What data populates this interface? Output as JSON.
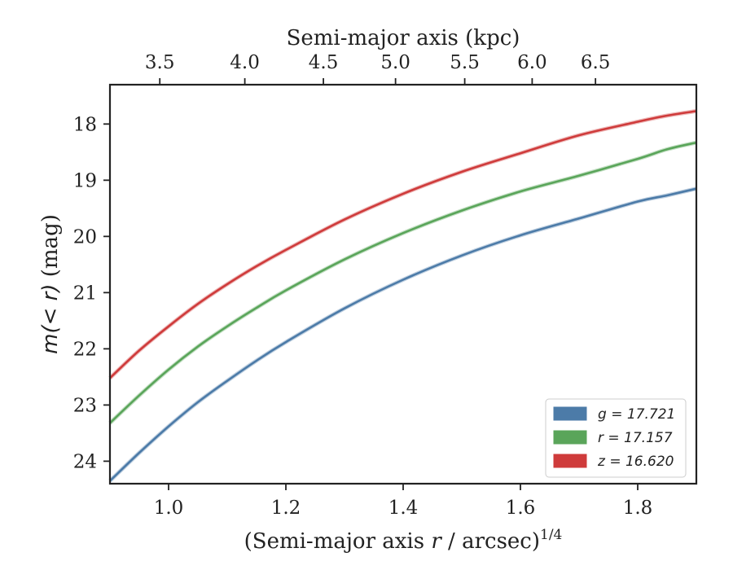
{
  "chart_data": {
    "type": "line",
    "xlabel_prefix": "(Semi-major axis ",
    "xlabel_var": "r",
    "xlabel_suffix": " / arcsec)",
    "xlabel_sup": "1/4",
    "ylabel_var": "m(< r)",
    "ylabel_suffix": " (mag)",
    "top_xlabel": "Semi-major axis (kpc)",
    "xlim": [
      0.9,
      1.9
    ],
    "ylim": [
      24.4,
      17.3
    ],
    "y_inverted": true,
    "x_ticks": [
      1.0,
      1.2,
      1.4,
      1.6,
      1.8
    ],
    "x_tick_labels": [
      "1.0",
      "1.2",
      "1.4",
      "1.6",
      "1.8"
    ],
    "y_ticks": [
      18,
      19,
      20,
      21,
      22,
      23,
      24
    ],
    "y_tick_labels": [
      "18",
      "19",
      "20",
      "21",
      "22",
      "23",
      "24"
    ],
    "top_ticks_x": [
      0.985,
      1.13,
      1.264,
      1.387,
      1.505,
      1.62,
      1.728
    ],
    "top_tick_labels": [
      "3.5",
      "4.0",
      "4.5",
      "5.0",
      "5.5",
      "6.0",
      "6.5"
    ],
    "legend_position": "lower-right",
    "grid": false,
    "series": [
      {
        "name": "g",
        "legend_label": "g = 17.721",
        "color": "#4c7ba8",
        "x": [
          0.9,
          0.95,
          1.0,
          1.05,
          1.1,
          1.15,
          1.2,
          1.3,
          1.4,
          1.5,
          1.6,
          1.7,
          1.8,
          1.85,
          1.9
        ],
        "y": [
          24.35,
          23.85,
          23.38,
          22.95,
          22.57,
          22.21,
          21.88,
          21.28,
          20.77,
          20.34,
          19.98,
          19.68,
          19.38,
          19.27,
          19.15
        ]
      },
      {
        "name": "r",
        "legend_label": "r = 17.157",
        "color": "#5aa55a",
        "x": [
          0.9,
          0.95,
          1.0,
          1.05,
          1.1,
          1.15,
          1.2,
          1.3,
          1.4,
          1.5,
          1.6,
          1.7,
          1.8,
          1.85,
          1.9
        ],
        "y": [
          23.32,
          22.83,
          22.37,
          21.96,
          21.6,
          21.27,
          20.96,
          20.41,
          19.94,
          19.54,
          19.2,
          18.92,
          18.62,
          18.45,
          18.33
        ]
      },
      {
        "name": "z",
        "legend_label": "z = 16.620",
        "color": "#cf3b3b",
        "x": [
          0.9,
          0.95,
          1.0,
          1.05,
          1.1,
          1.15,
          1.2,
          1.3,
          1.4,
          1.5,
          1.6,
          1.7,
          1.8,
          1.85,
          1.9
        ],
        "y": [
          22.52,
          22.03,
          21.6,
          21.2,
          20.85,
          20.53,
          20.24,
          19.7,
          19.24,
          18.85,
          18.52,
          18.2,
          17.96,
          17.85,
          17.77
        ]
      }
    ]
  }
}
